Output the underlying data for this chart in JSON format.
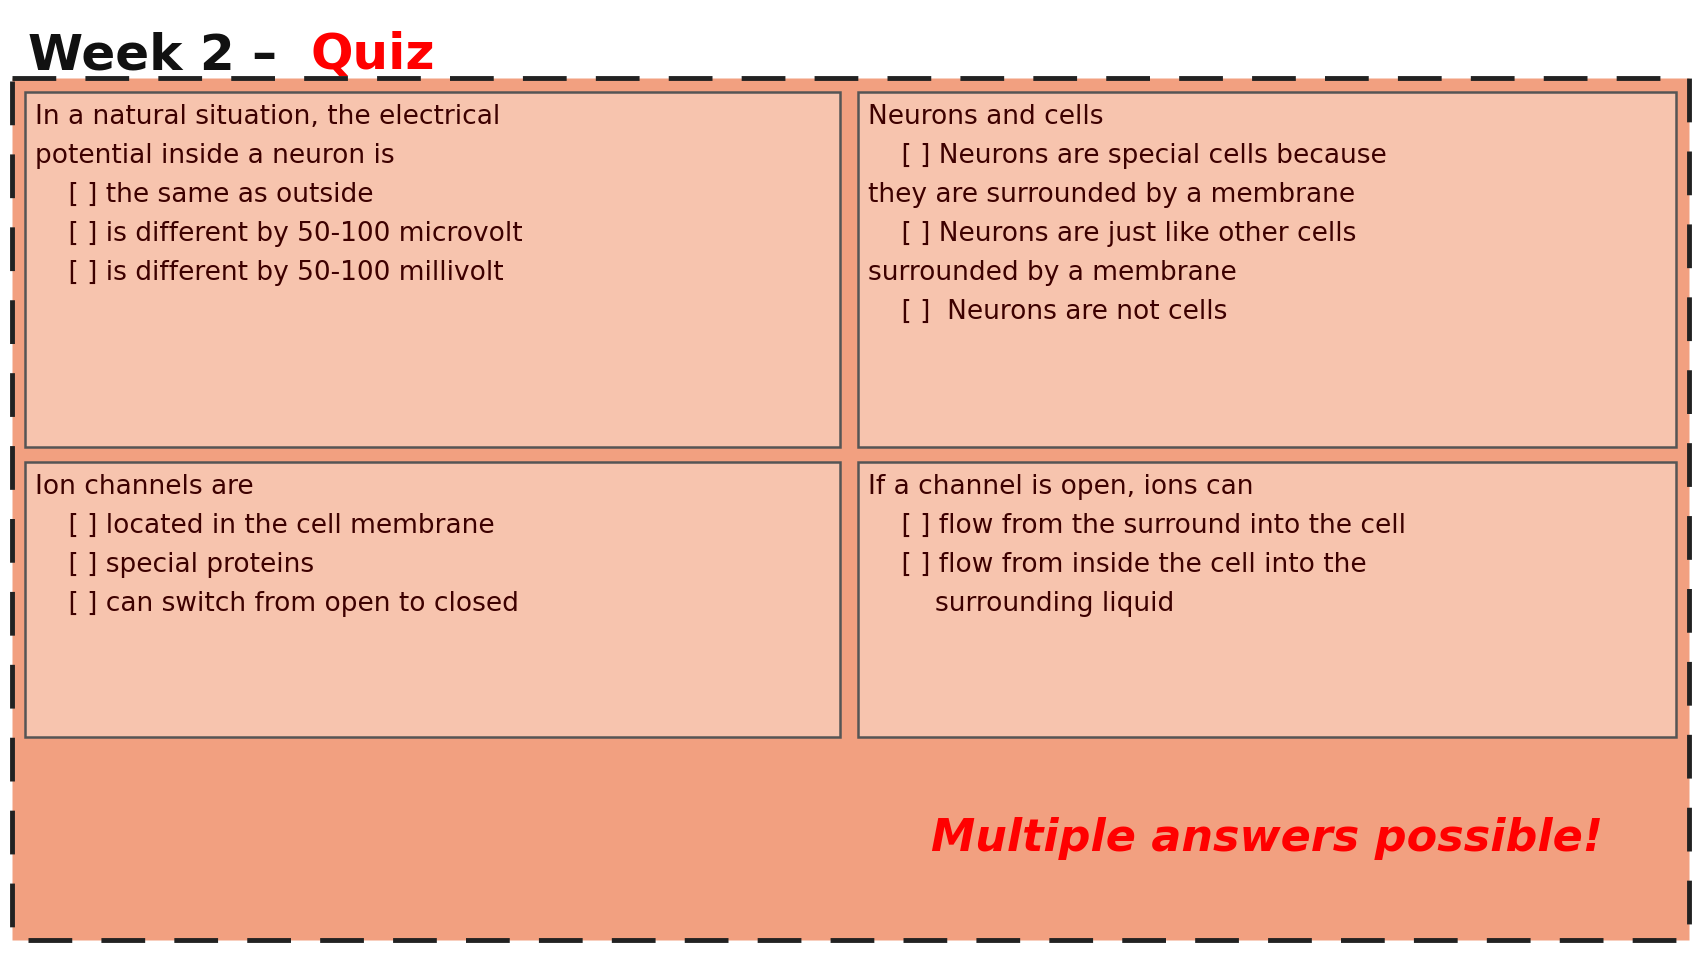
{
  "title_black": "Week 2 – ",
  "title_red": "Quiz",
  "white_bg": "#FFFFFF",
  "outer_bg_color": "#F2A080",
  "inner_box_bg": "#F7C4AE",
  "box_edge_color": "#555555",
  "text_color": "#3D0000",
  "red_color": "#FF0000",
  "title_color_black": "#111111",
  "dash_color": "#222222",
  "box1_text": "In a natural situation, the electrical\npotential inside a neuron is\n    [ ] the same as outside\n    [ ] is different by 50-100 microvolt\n    [ ] is different by 50-100 millivolt",
  "box2_text": "Neurons and cells\n    [ ] Neurons are special cells because\nthey are surrounded by a membrane\n    [ ] Neurons are just like other cells\nsurrounded by a membrane\n    [ ]  Neurons are not cells",
  "box3_text": "Ion channels are\n    [ ] located in the cell membrane\n    [ ] special proteins\n    [ ] can switch from open to closed",
  "box4_text": "If a channel is open, ions can\n    [ ] flow from the surround into the cell\n    [ ] flow from inside the cell into the\n        surrounding liquid",
  "multiple_answers_text": "Multiple answers possible!",
  "title_fontsize": 36,
  "content_fontsize": 19,
  "multiple_fontsize": 32
}
